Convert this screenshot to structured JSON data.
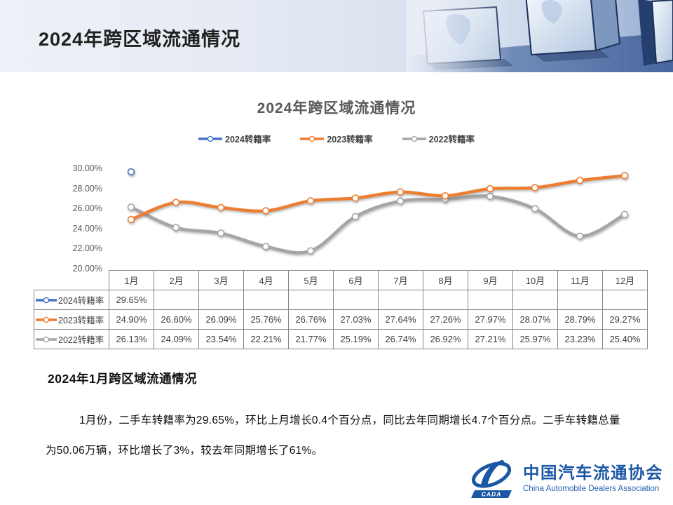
{
  "slide": {
    "header_title": "2024年跨区域流通情况",
    "section_heading": "2024年1月跨区域流通情况",
    "paragraph_line1": "1月份，二手车转籍率为29.65%，环比上月增长0.4个百分点，同比去年同期增长4.7个百分点。二手车转籍总量",
    "paragraph_line2": "为50.06万辆，环比增长了3%，较去年同期增长了61%。"
  },
  "chart_data": {
    "type": "line",
    "title": "2024年跨区域流通情况",
    "categories": [
      "1月",
      "2月",
      "3月",
      "4月",
      "5月",
      "6月",
      "7月",
      "8月",
      "9月",
      "10月",
      "11月",
      "12月"
    ],
    "series": [
      {
        "name": "2024转籍率",
        "color": "#4472C4",
        "values": [
          29.65,
          null,
          null,
          null,
          null,
          null,
          null,
          null,
          null,
          null,
          null,
          null
        ]
      },
      {
        "name": "2023转籍率",
        "color": "#ED7D31",
        "values": [
          24.9,
          26.6,
          26.09,
          25.76,
          26.76,
          27.03,
          27.64,
          27.26,
          27.97,
          28.07,
          28.79,
          29.27
        ]
      },
      {
        "name": "2022转籍率",
        "color": "#A5A5A5",
        "values": [
          26.13,
          24.09,
          23.54,
          22.21,
          21.77,
          25.19,
          26.74,
          26.92,
          27.21,
          25.97,
          23.23,
          25.4
        ]
      }
    ],
    "ylim": [
      20,
      30
    ],
    "ytick_labels": [
      "30.00%",
      "28.00%",
      "26.00%",
      "24.00%",
      "22.00%",
      "20.00%"
    ],
    "legend_position": "top",
    "grid": false,
    "marker_style": "white-filled-circle",
    "data_table_shown": true,
    "value_suffix": "%"
  },
  "footer": {
    "org_name_cn": "中国汽车流通协会",
    "org_name_en": "China Automobile Dealers Association",
    "badge": "CADA",
    "brand_color": "#1c57a5"
  }
}
